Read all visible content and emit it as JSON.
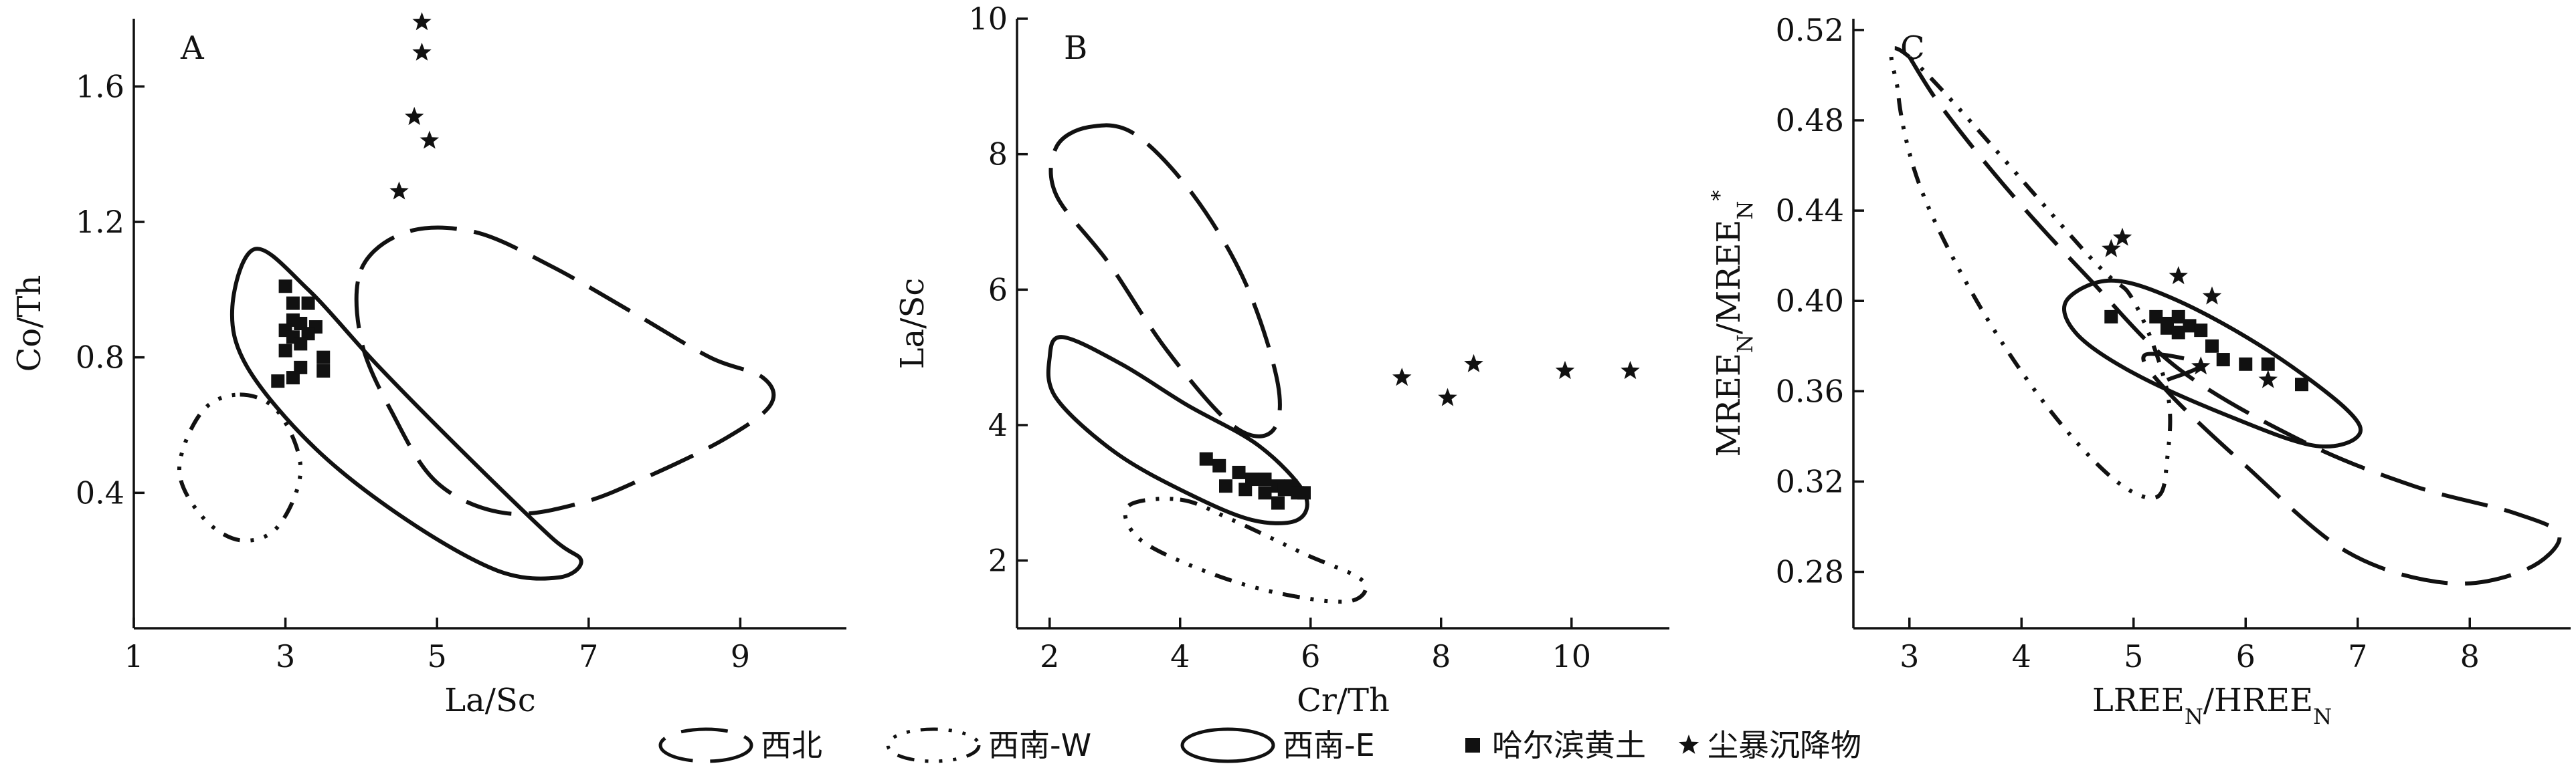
{
  "legend": {
    "items": [
      {
        "key": "nw",
        "style": "dash",
        "label": "西北"
      },
      {
        "key": "sww",
        "style": "dashdot",
        "label": "西南-W"
      },
      {
        "key": "swe",
        "style": "solid",
        "label": "西南-E"
      },
      {
        "key": "loess",
        "style": "square",
        "label": "哈尔滨黄土"
      },
      {
        "key": "dust",
        "style": "star",
        "label": "尘暴沉降物"
      }
    ]
  },
  "chart_data": [
    {
      "panel": "A",
      "type": "scatter",
      "xlabel": "La/Sc",
      "ylabel": "Co/Th",
      "xlim": [
        1,
        10.4
      ],
      "ylim": [
        0,
        1.8
      ],
      "xticks": [
        1,
        3,
        5,
        7,
        9
      ],
      "yticks": [
        0.4,
        0.8,
        1.2,
        1.6
      ],
      "regions": [
        {
          "name": "西北",
          "style": "dash",
          "outline": [
            [
              4.0,
              1.06
            ],
            [
              4.6,
              1.17
            ],
            [
              5.5,
              1.17
            ],
            [
              6.5,
              1.07
            ],
            [
              7.6,
              0.93
            ],
            [
              8.6,
              0.8
            ],
            [
              9.3,
              0.74
            ],
            [
              9.4,
              0.66
            ],
            [
              8.8,
              0.56
            ],
            [
              7.8,
              0.45
            ],
            [
              6.9,
              0.37
            ],
            [
              5.9,
              0.34
            ],
            [
              5.0,
              0.43
            ],
            [
              4.4,
              0.64
            ],
            [
              4.0,
              0.85
            ]
          ]
        },
        {
          "name": "西南-W",
          "style": "dashdot",
          "outline": [
            [
              2.4,
              0.69
            ],
            [
              2.9,
              0.64
            ],
            [
              3.2,
              0.47
            ],
            [
              2.9,
              0.3
            ],
            [
              2.4,
              0.26
            ],
            [
              1.9,
              0.33
            ],
            [
              1.6,
              0.47
            ],
            [
              1.9,
              0.64
            ]
          ]
        },
        {
          "name": "西南-E",
          "style": "solid",
          "outline": [
            [
              2.6,
              1.12
            ],
            [
              3.3,
              1.0
            ],
            [
              4.2,
              0.78
            ],
            [
              5.3,
              0.53
            ],
            [
              6.5,
              0.27
            ],
            [
              6.9,
              0.2
            ],
            [
              6.6,
              0.15
            ],
            [
              5.8,
              0.17
            ],
            [
              4.6,
              0.32
            ],
            [
              3.4,
              0.53
            ],
            [
              2.5,
              0.77
            ],
            [
              2.3,
              0.95
            ]
          ]
        }
      ],
      "series": [
        {
          "name": "哈尔滨黄土",
          "marker": "square",
          "points": [
            [
              3.0,
              1.01
            ],
            [
              3.1,
              0.96
            ],
            [
              3.3,
              0.96
            ],
            [
              3.1,
              0.91
            ],
            [
              3.2,
              0.9
            ],
            [
              3.4,
              0.89
            ],
            [
              3.0,
              0.88
            ],
            [
              3.3,
              0.87
            ],
            [
              3.1,
              0.86
            ],
            [
              3.2,
              0.84
            ],
            [
              3.0,
              0.82
            ],
            [
              3.5,
              0.8
            ],
            [
              3.2,
              0.77
            ],
            [
              3.5,
              0.76
            ],
            [
              3.1,
              0.74
            ],
            [
              2.9,
              0.73
            ]
          ]
        },
        {
          "name": "尘暴沉降物",
          "marker": "star",
          "points": [
            [
              4.8,
              1.79
            ],
            [
              4.8,
              1.7
            ],
            [
              4.7,
              1.51
            ],
            [
              4.9,
              1.44
            ],
            [
              4.5,
              1.29
            ]
          ]
        }
      ]
    },
    {
      "panel": "B",
      "type": "scatter",
      "xlabel": "Cr/Th",
      "ylabel": "La/Sc",
      "xlim": [
        1.5,
        11.5
      ],
      "ylim": [
        1,
        10
      ],
      "xticks": [
        2,
        4,
        6,
        8,
        10
      ],
      "yticks": [
        2,
        4,
        6,
        8,
        10
      ],
      "regions": [
        {
          "name": "西北",
          "style": "dash",
          "outline": [
            [
              2.6,
              8.4
            ],
            [
              3.3,
              8.3
            ],
            [
              4.2,
              7.4
            ],
            [
              5.0,
              6.1
            ],
            [
              5.5,
              4.6
            ],
            [
              5.4,
              3.9
            ],
            [
              4.8,
              4.0
            ],
            [
              3.8,
              5.1
            ],
            [
              2.9,
              6.4
            ],
            [
              2.1,
              7.4
            ],
            [
              2.1,
              8.1
            ]
          ]
        },
        {
          "name": "西南-W",
          "style": "dashdot",
          "outline": [
            [
              4.0,
              2.9
            ],
            [
              4.8,
              2.6
            ],
            [
              5.9,
              2.1
            ],
            [
              6.8,
              1.7
            ],
            [
              6.6,
              1.4
            ],
            [
              5.6,
              1.5
            ],
            [
              4.5,
              1.8
            ],
            [
              3.4,
              2.3
            ],
            [
              3.2,
              2.8
            ]
          ]
        },
        {
          "name": "西南-E",
          "style": "solid",
          "outline": [
            [
              2.2,
              5.3
            ],
            [
              3.1,
              4.9
            ],
            [
              4.1,
              4.3
            ],
            [
              5.2,
              3.7
            ],
            [
              5.9,
              3.0
            ],
            [
              5.8,
              2.6
            ],
            [
              5.1,
              2.6
            ],
            [
              4.1,
              3.0
            ],
            [
              3.0,
              3.6
            ],
            [
              2.1,
              4.4
            ],
            [
              2.0,
              5.0
            ]
          ]
        }
      ],
      "series": [
        {
          "name": "哈尔滨黄土",
          "marker": "square",
          "points": [
            [
              4.4,
              3.5
            ],
            [
              4.6,
              3.4
            ],
            [
              4.9,
              3.3
            ],
            [
              5.1,
              3.2
            ],
            [
              5.3,
              3.2
            ],
            [
              5.5,
              3.1
            ],
            [
              5.7,
              3.1
            ],
            [
              4.7,
              3.1
            ],
            [
              5.0,
              3.05
            ],
            [
              5.3,
              3.0
            ],
            [
              5.6,
              3.05
            ],
            [
              5.8,
              3.0
            ],
            [
              5.5,
              2.85
            ],
            [
              5.9,
              3.0
            ]
          ]
        },
        {
          "name": "尘暴沉降物",
          "marker": "star",
          "points": [
            [
              7.4,
              4.7
            ],
            [
              8.1,
              4.4
            ],
            [
              8.5,
              4.9
            ],
            [
              9.9,
              4.8
            ],
            [
              10.9,
              4.8
            ]
          ]
        }
      ]
    },
    {
      "panel": "C",
      "type": "scatter",
      "xlabel": "LREE_N/HREE_N",
      "ylabel": "MREE_N/MREE_N*",
      "xlim": [
        2.5,
        8.9
      ],
      "ylim": [
        0.255,
        0.525
      ],
      "xticks": [
        3,
        4,
        5,
        6,
        7,
        8
      ],
      "yticks": [
        0.28,
        0.32,
        0.36,
        0.4,
        0.44,
        0.48,
        0.52
      ],
      "regions": [
        {
          "name": "西北",
          "style": "dash",
          "outline": [
            [
              3.0,
              0.508
            ],
            [
              3.3,
              0.485
            ],
            [
              3.9,
              0.448
            ],
            [
              4.6,
              0.41
            ],
            [
              5.4,
              0.37
            ],
            [
              6.5,
              0.338
            ],
            [
              7.5,
              0.318
            ],
            [
              8.4,
              0.306
            ],
            [
              8.8,
              0.296
            ],
            [
              8.5,
              0.281
            ],
            [
              7.8,
              0.275
            ],
            [
              6.9,
              0.289
            ],
            [
              6.0,
              0.327
            ],
            [
              5.3,
              0.36
            ],
            [
              5.1,
              0.376
            ],
            [
              5.6,
              0.372
            ],
            [
              5.3,
              0.365
            ]
          ]
        },
        {
          "name": "西南-W",
          "style": "dashdot",
          "outline": [
            [
              3.0,
              0.508
            ],
            [
              2.9,
              0.492
            ],
            [
              3.1,
              0.45
            ],
            [
              3.6,
              0.4
            ],
            [
              4.2,
              0.355
            ],
            [
              4.8,
              0.322
            ],
            [
              5.2,
              0.313
            ],
            [
              5.3,
              0.33
            ],
            [
              5.3,
              0.36
            ],
            [
              5.0,
              0.4
            ],
            [
              4.6,
              0.42
            ]
          ]
        },
        {
          "name": "西南-E",
          "style": "solid",
          "outline": [
            [
              4.8,
              0.409
            ],
            [
              5.4,
              0.4
            ],
            [
              6.2,
              0.378
            ],
            [
              6.9,
              0.352
            ],
            [
              7.0,
              0.34
            ],
            [
              6.6,
              0.336
            ],
            [
              5.8,
              0.35
            ],
            [
              5.0,
              0.368
            ],
            [
              4.5,
              0.385
            ],
            [
              4.4,
              0.4
            ]
          ]
        }
      ],
      "series": [
        {
          "name": "哈尔滨黄土",
          "marker": "square",
          "points": [
            [
              4.8,
              0.393
            ],
            [
              5.2,
              0.393
            ],
            [
              5.3,
              0.39
            ],
            [
              5.4,
              0.393
            ],
            [
              5.3,
              0.388
            ],
            [
              5.4,
              0.386
            ],
            [
              5.5,
              0.389
            ],
            [
              5.6,
              0.387
            ],
            [
              5.7,
              0.38
            ],
            [
              5.8,
              0.374
            ],
            [
              6.0,
              0.372
            ],
            [
              6.2,
              0.372
            ],
            [
              6.5,
              0.363
            ]
          ]
        },
        {
          "name": "尘暴沉降物",
          "marker": "star",
          "points": [
            [
              4.8,
              0.423
            ],
            [
              4.9,
              0.428
            ],
            [
              5.4,
              0.411
            ],
            [
              5.7,
              0.402
            ],
            [
              5.6,
              0.371
            ],
            [
              6.2,
              0.365
            ]
          ]
        }
      ]
    }
  ]
}
